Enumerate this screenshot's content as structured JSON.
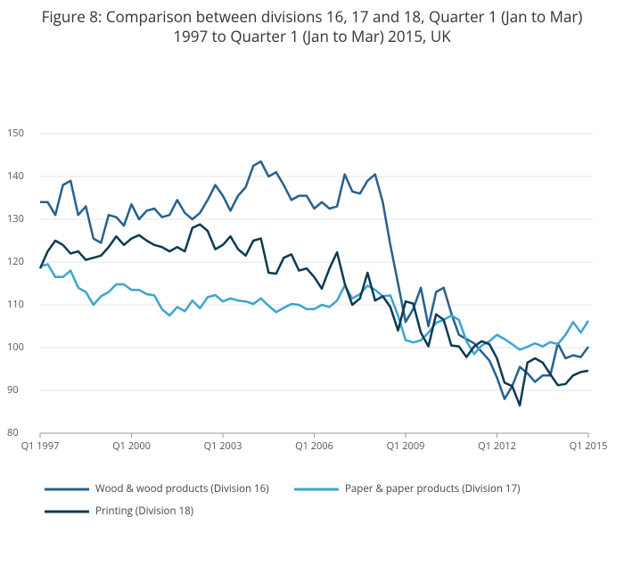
{
  "chart_data": {
    "type": "line",
    "title": "Figure 8: Comparison between divisions 16, 17 and 18, Quarter 1 (Jan to Mar) 1997 to Quarter 1 (Jan to Mar) 2015, UK",
    "categories": [
      "Q1 1997",
      null,
      null,
      null,
      null,
      null,
      null,
      null,
      null,
      null,
      null,
      null,
      "Q1 2000",
      null,
      null,
      null,
      null,
      null,
      null,
      null,
      null,
      null,
      null,
      null,
      "Q1 2003",
      null,
      null,
      null,
      null,
      null,
      null,
      null,
      null,
      null,
      null,
      null,
      "Q1 2006",
      null,
      null,
      null,
      null,
      null,
      null,
      null,
      null,
      null,
      null,
      null,
      "Q1 2009",
      null,
      null,
      null,
      null,
      null,
      null,
      null,
      null,
      null,
      null,
      null,
      "Q1 2012",
      null,
      null,
      null,
      null,
      null,
      null,
      null,
      null,
      null,
      null,
      null,
      "Q1 2015"
    ],
    "ylim": [
      80,
      150
    ],
    "yticks": [
      80,
      90,
      100,
      110,
      120,
      130,
      140,
      150
    ],
    "grid": true,
    "legend": "bottom",
    "series": [
      {
        "name": "Wood & wood products (Division 16)",
        "color": "#27608f",
        "values": [
          134,
          134,
          131,
          138,
          139,
          131,
          133,
          125.5,
          124.5,
          131,
          130.5,
          128.5,
          133.5,
          130,
          132,
          132.5,
          130.5,
          131,
          134.5,
          131.5,
          130,
          131.5,
          134.5,
          138,
          135.5,
          132,
          135.5,
          137.5,
          142.5,
          143.5,
          140,
          141,
          138,
          134.5,
          135.5,
          135.5,
          132.5,
          134,
          132.5,
          133,
          140.5,
          136.5,
          136,
          139,
          140.5,
          134,
          124,
          115,
          106,
          109,
          114,
          105,
          113,
          114,
          108,
          103,
          102,
          101,
          99,
          97,
          93,
          88,
          91,
          95.5,
          94,
          92,
          93.5,
          93.5,
          101,
          97.5,
          98.2,
          97.8,
          100.2
        ]
      },
      {
        "name": "Paper & paper products (Division 17)",
        "color": "#3ba5d3",
        "values": [
          119,
          119.5,
          116.5,
          116.5,
          118,
          114,
          113,
          110,
          112,
          113,
          114.8,
          114.8,
          113.5,
          113.5,
          112.5,
          112.2,
          109,
          107.5,
          109.5,
          108.5,
          111,
          109.2,
          111.8,
          112.3,
          110.8,
          111.5,
          111,
          110.8,
          110.2,
          111.5,
          109.8,
          108.3,
          109.3,
          110.2,
          110,
          109,
          109,
          110,
          109.5,
          111,
          114.5,
          111.5,
          112.5,
          114.5,
          113.5,
          112,
          112.2,
          107.5,
          101.8,
          101.2,
          101.7,
          103.5,
          105.8,
          106.5,
          107.5,
          106.5,
          101.5,
          98.5,
          100.5,
          101.5,
          103,
          102,
          100.8,
          99.5,
          100.2,
          101,
          100.3,
          101.3,
          100.8,
          103,
          106,
          103.5,
          106.3
        ]
      },
      {
        "name": "Printing (Division 18)",
        "color": "#0b3a52",
        "values": [
          118.5,
          122.5,
          125,
          124,
          122,
          122.5,
          120.5,
          121,
          121.5,
          123.5,
          126,
          124,
          125.5,
          126.3,
          125,
          124,
          123.5,
          122.5,
          123.5,
          122.5,
          128,
          128.8,
          127.3,
          123,
          124,
          126,
          123,
          121.5,
          125,
          125.5,
          117.5,
          117.3,
          121,
          121.8,
          118,
          118.5,
          116.5,
          113.8,
          118.5,
          122.3,
          115,
          110,
          111.5,
          117.5,
          111,
          112,
          109.5,
          104,
          110.8,
          110.3,
          103.5,
          100.3,
          107.8,
          106.5,
          100.5,
          100.3,
          97.8,
          100.3,
          101.5,
          100.8,
          97.5,
          91.8,
          91,
          86.5,
          96.5,
          97.5,
          96.5,
          93.8,
          91.2,
          91.5,
          93.5,
          94.3,
          94.6
        ]
      }
    ]
  }
}
